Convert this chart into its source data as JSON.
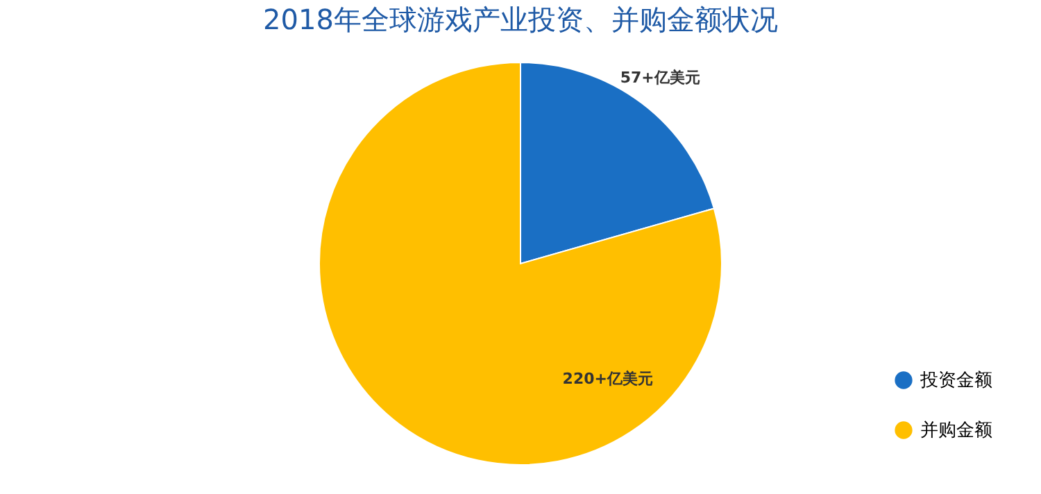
{
  "chart_data": {
    "type": "pie",
    "title": "2018年全球游戏产业投资、并购金额状况",
    "categories": [
      "投资金额",
      "并购金额"
    ],
    "values": [
      57,
      220
    ],
    "colors": [
      "#1a6fc4",
      "#ffbf00"
    ],
    "value_labels": [
      "57+亿美元",
      "220+亿美元"
    ],
    "legend": "bottom right"
  }
}
